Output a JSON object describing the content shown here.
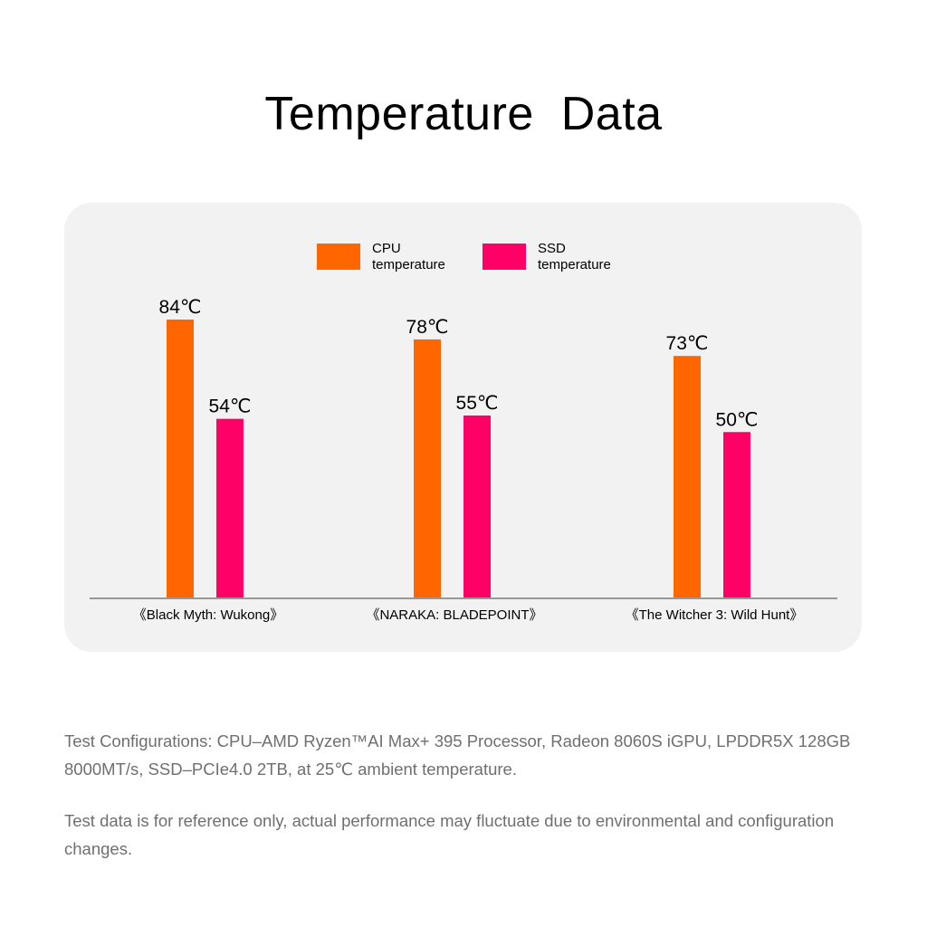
{
  "title": "Temperature  Data",
  "legend": [
    {
      "label": "CPU temperature",
      "color": "#ff6600"
    },
    {
      "label": "SSD temperature",
      "color": "#ff0066"
    }
  ],
  "chart_data": {
    "type": "bar",
    "title": "",
    "xlabel": "",
    "ylabel": "",
    "categories": [
      "《Black Myth: Wukong》",
      "《NARAKA: BLADEPOINT》",
      "《The Witcher 3: Wild Hunt》"
    ],
    "series": [
      {
        "name": "CPU temperature",
        "color": "#ff6600",
        "values": [
          84,
          78,
          73
        ]
      },
      {
        "name": "SSD temperature",
        "color": "#ff0066",
        "values": [
          54,
          55,
          50
        ]
      }
    ],
    "value_suffix": "℃",
    "ylim": [
      0,
      84
    ],
    "grid": false,
    "legend_position": "top-center"
  },
  "notes": {
    "config": "Test Configurations: CPU–AMD Ryzen™AI Max+ 395 Processor, Radeon 8060S iGPU, LPDDR5X 128GB 8000MT/s, SSD–PCIe4.0 2TB, at 25℃ ambient temperature.",
    "disclaimer": "Test data is for reference only, actual performance may fluctuate due to environmental and configuration changes."
  }
}
